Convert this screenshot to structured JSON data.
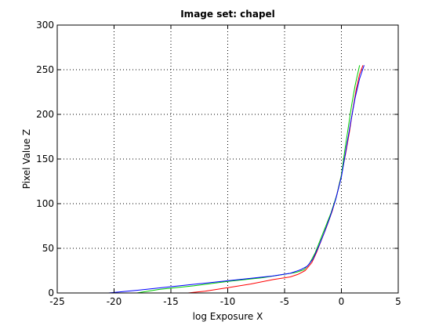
{
  "chart_data": {
    "type": "line",
    "title": "Image set: chapel",
    "xlabel": "log Exposure X",
    "ylabel": "Pixel Value Z",
    "xlim": [
      -25,
      5
    ],
    "ylim": [
      0,
      300
    ],
    "xticks": [
      -25,
      -20,
      -15,
      -10,
      -5,
      0,
      5
    ],
    "yticks": [
      0,
      50,
      100,
      150,
      200,
      250,
      300
    ],
    "grid": true,
    "series": [
      {
        "color": "#ff0000",
        "points": [
          [
            -13.5,
            0
          ],
          [
            -12,
            2
          ],
          [
            -10,
            6
          ],
          [
            -8,
            10
          ],
          [
            -6,
            15
          ],
          [
            -4.5,
            18
          ],
          [
            -3.8,
            21
          ],
          [
            -3.2,
            25
          ],
          [
            -2.6,
            34
          ],
          [
            -2.2,
            45
          ],
          [
            -1.8,
            58
          ],
          [
            -1.3,
            74
          ],
          [
            -0.8,
            92
          ],
          [
            -0.4,
            110
          ],
          [
            0,
            132
          ],
          [
            0.4,
            158
          ],
          [
            0.7,
            180
          ],
          [
            1.0,
            205
          ],
          [
            1.3,
            228
          ],
          [
            1.6,
            245
          ],
          [
            1.9,
            255
          ]
        ]
      },
      {
        "color": "#00cc00",
        "points": [
          [
            -18,
            0
          ],
          [
            -16,
            4
          ],
          [
            -13,
            8
          ],
          [
            -10,
            13
          ],
          [
            -7,
            17
          ],
          [
            -5,
            21
          ],
          [
            -4,
            23
          ],
          [
            -3.3,
            26
          ],
          [
            -2.8,
            33
          ],
          [
            -2.3,
            45
          ],
          [
            -1.9,
            58
          ],
          [
            -1.4,
            74
          ],
          [
            -0.9,
            90
          ],
          [
            -0.4,
            110
          ],
          [
            0,
            132
          ],
          [
            0.3,
            160
          ],
          [
            0.6,
            185
          ],
          [
            0.9,
            210
          ],
          [
            1.2,
            232
          ],
          [
            1.6,
            255
          ]
        ]
      },
      {
        "color": "#0000ff",
        "points": [
          [
            -20.5,
            0
          ],
          [
            -18,
            3
          ],
          [
            -15,
            7
          ],
          [
            -12,
            11
          ],
          [
            -9,
            15
          ],
          [
            -6,
            19
          ],
          [
            -4.5,
            22
          ],
          [
            -3.6,
            26
          ],
          [
            -3.0,
            30
          ],
          [
            -2.5,
            38
          ],
          [
            -2.0,
            52
          ],
          [
            -1.5,
            68
          ],
          [
            -1.0,
            85
          ],
          [
            -0.5,
            105
          ],
          [
            0,
            130
          ],
          [
            0.4,
            160
          ],
          [
            0.8,
            190
          ],
          [
            1.2,
            218
          ],
          [
            1.6,
            240
          ],
          [
            2.0,
            255
          ]
        ]
      }
    ]
  }
}
